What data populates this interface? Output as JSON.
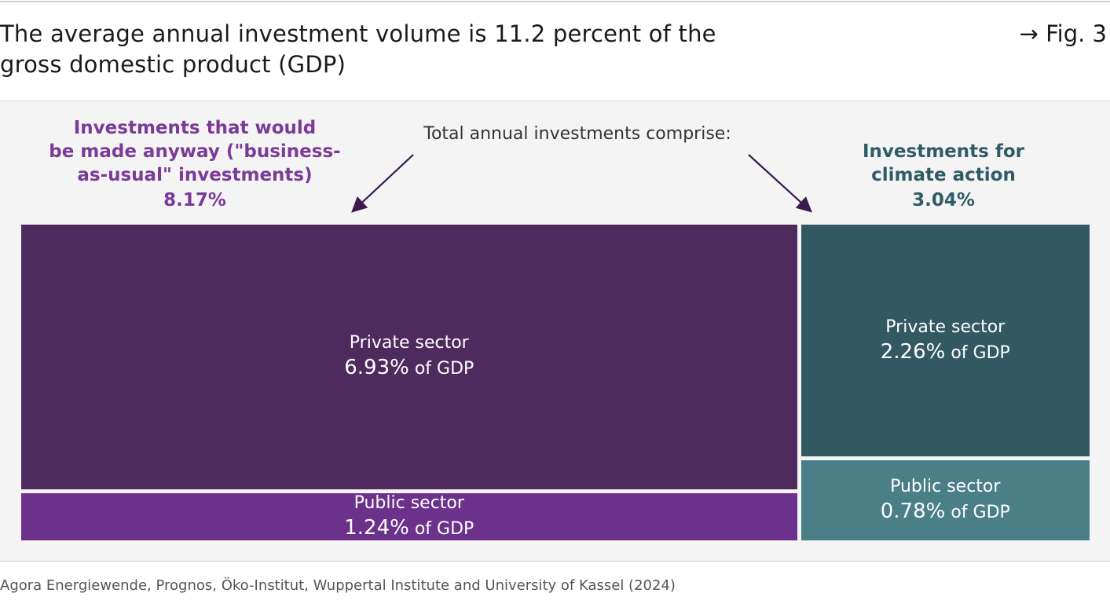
{
  "header": {
    "title_line1": "The average annual investment volume is 11.2 percent of the",
    "title_line2": "gross domestic product (GDP)",
    "figure_ref": "→ Fig. 3"
  },
  "colors": {
    "bau_private": "#4e2a5e",
    "bau_public": "#6b318b",
    "climate_private": "#325962",
    "climate_public": "#4a7f88",
    "bau_label": "#7b3a97",
    "climate_label": "#2e5c66",
    "arrow": "#3b1a4e"
  },
  "chart_data": {
    "type": "treemap",
    "title": "The average annual investment volume is 11.2 percent of the gross domestic product (GDP)",
    "annotation": "Total annual investments comprise:",
    "unit": "% of GDP",
    "total": 11.2,
    "groups": [
      {
        "label_lines": [
          "Investments that would",
          "be made anyway (\"business-",
          "as-usual\" investments)"
        ],
        "total_label": "8.17%",
        "total": 8.17,
        "children": [
          {
            "name": "Private sector",
            "value": 6.93,
            "value_label": "6.93%",
            "suffix": " of GDP"
          },
          {
            "name": "Public sector",
            "value": 1.24,
            "value_label": "1.24%",
            "suffix": " of GDP"
          }
        ]
      },
      {
        "label_lines": [
          "Investments for",
          "climate action"
        ],
        "total_label": "3.04%",
        "total": 3.04,
        "children": [
          {
            "name": "Private sector",
            "value": 2.26,
            "value_label": "2.26%",
            "suffix": " of GDP"
          },
          {
            "name": "Public sector",
            "value": 0.78,
            "value_label": "0.78%",
            "suffix": " of GDP"
          }
        ]
      }
    ]
  },
  "source": "Agora Energiewende, Prognos, Öko-Institut, Wuppertal Institute and University of Kassel (2024)"
}
